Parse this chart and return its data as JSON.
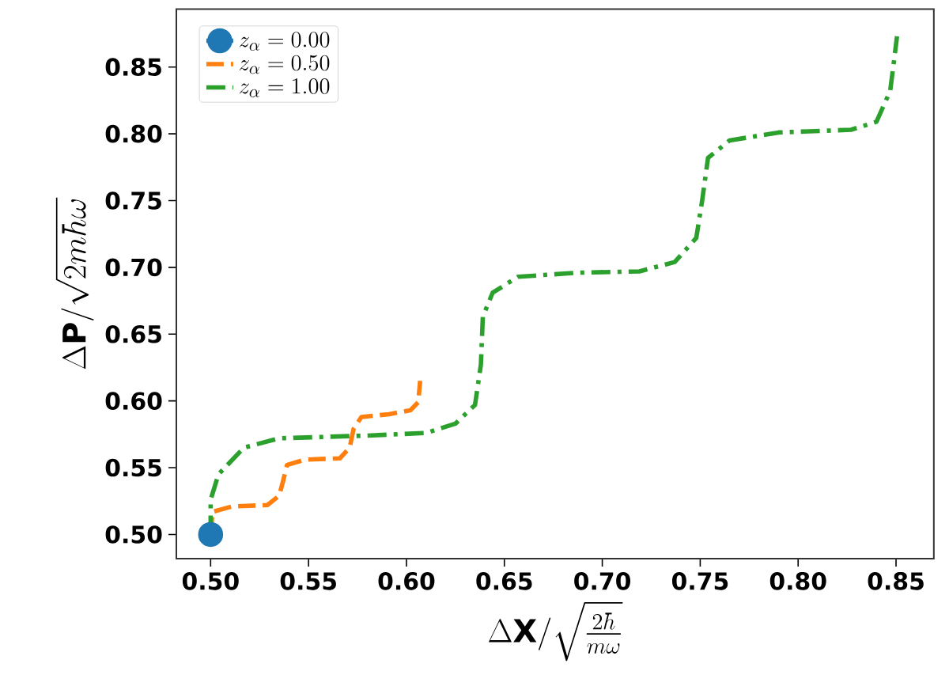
{
  "chart_data": {
    "type": "line",
    "xlabel": "\\Delta \\mathbf{X}/\\sqrt{\\frac{2\\hbar}{m\\omega}}",
    "ylabel": "\\Delta \\mathbf{P}/\\sqrt{2m\\hbar\\omega}",
    "xlim": [
      0.4825,
      0.8693
    ],
    "ylim": [
      0.4819,
      0.8933
    ],
    "xticks": [
      {
        "value": 0.5,
        "label": "0.50"
      },
      {
        "value": 0.55,
        "label": "0.55"
      },
      {
        "value": 0.6,
        "label": "0.60"
      },
      {
        "value": 0.65,
        "label": "0.65"
      },
      {
        "value": 0.7,
        "label": "0.70"
      },
      {
        "value": 0.75,
        "label": "0.75"
      },
      {
        "value": 0.8,
        "label": "0.80"
      },
      {
        "value": 0.85,
        "label": "0.85"
      }
    ],
    "yticks": [
      {
        "value": 0.5,
        "label": "0.50"
      },
      {
        "value": 0.55,
        "label": "0.55"
      },
      {
        "value": 0.6,
        "label": "0.60"
      },
      {
        "value": 0.65,
        "label": "0.65"
      },
      {
        "value": 0.7,
        "label": "0.70"
      },
      {
        "value": 0.75,
        "label": "0.75"
      },
      {
        "value": 0.8,
        "label": "0.80"
      },
      {
        "value": 0.85,
        "label": "0.85"
      }
    ],
    "legend": "top left",
    "grid": false,
    "series": [
      {
        "name": "z_\\alpha = 0.00",
        "color": "#1f77b4",
        "marker": "circle",
        "line_style": "solid",
        "x": [
          0.5
        ],
        "values": [
          0.5
        ]
      },
      {
        "name": "z_\\alpha = 0.50",
        "color": "#ff7f0e",
        "marker": "none",
        "line_style": "dashed",
        "x": [
          0.5,
          0.501,
          0.511,
          0.529,
          0.535,
          0.537,
          0.539,
          0.548,
          0.566,
          0.571,
          0.573,
          0.577,
          0.591,
          0.602,
          0.606,
          0.607
        ],
        "values": [
          0.5,
          0.517,
          0.521,
          0.522,
          0.529,
          0.54,
          0.552,
          0.556,
          0.557,
          0.565,
          0.579,
          0.588,
          0.59,
          0.593,
          0.599,
          0.615
        ]
      },
      {
        "name": "z_\\alpha = 1.00",
        "color": "#2ca02c",
        "marker": "none",
        "line_style": "dashdot",
        "x": [
          0.5,
          0.5,
          0.504,
          0.517,
          0.535,
          0.579,
          0.61,
          0.625,
          0.635,
          0.638,
          0.639,
          0.644,
          0.657,
          0.688,
          0.719,
          0.737,
          0.748,
          0.751,
          0.754,
          0.765,
          0.79,
          0.827,
          0.84,
          0.847,
          0.849,
          0.8505
        ],
        "values": [
          0.5,
          0.526,
          0.545,
          0.565,
          0.572,
          0.574,
          0.576,
          0.583,
          0.597,
          0.627,
          0.663,
          0.681,
          0.693,
          0.696,
          0.697,
          0.704,
          0.722,
          0.75,
          0.782,
          0.795,
          0.801,
          0.803,
          0.809,
          0.832,
          0.855,
          0.873
        ]
      }
    ]
  }
}
